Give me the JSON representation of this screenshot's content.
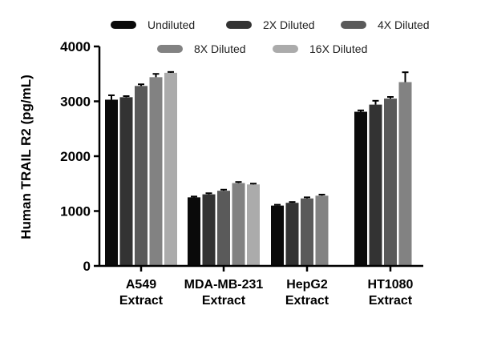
{
  "chart_data": {
    "type": "bar",
    "ylabel": "Human TRAIL R2 (pg/mL)",
    "xlabel": "",
    "ylim": [
      0,
      4000
    ],
    "yticks": [
      0,
      1000,
      2000,
      3000,
      4000
    ],
    "grid": false,
    "legend_position": "top",
    "categories": [
      [
        "A549",
        "Extract"
      ],
      [
        "MDA-MB-231",
        "Extract"
      ],
      [
        "HepG2",
        "Extract"
      ],
      [
        "HT1080",
        "Extract"
      ]
    ],
    "series": [
      {
        "name": "Undiluted",
        "color": "#0a0a0a",
        "values": [
          3030,
          1250,
          1100,
          2810
        ],
        "errors": [
          80,
          15,
          15,
          25
        ]
      },
      {
        "name": "2X Diluted",
        "color": "#333333",
        "values": [
          3075,
          1305,
          1150,
          2940
        ],
        "errors": [
          20,
          20,
          15,
          70
        ]
      },
      {
        "name": "4X Diluted",
        "color": "#5a5a5a",
        "values": [
          3280,
          1370,
          1230,
          3050
        ],
        "errors": [
          30,
          20,
          20,
          30
        ]
      },
      {
        "name": "8X Diluted",
        "color": "#828282",
        "values": [
          3440,
          1510,
          1280,
          3350
        ],
        "errors": [
          60,
          20,
          20,
          180
        ]
      },
      {
        "name": "16X Diluted",
        "color": "#ababab",
        "values": [
          3520,
          1485,
          null,
          null
        ],
        "errors": [
          15,
          15,
          null,
          null
        ]
      }
    ]
  }
}
